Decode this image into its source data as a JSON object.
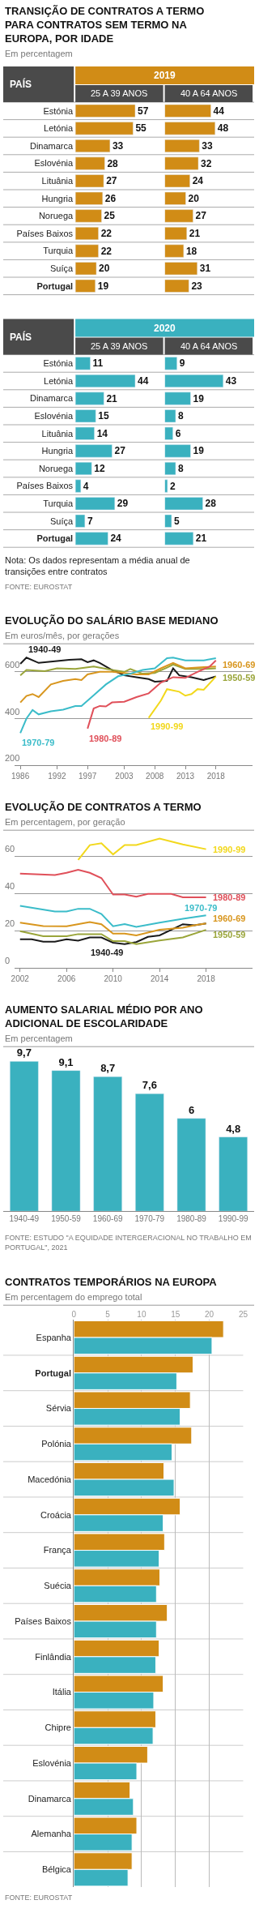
{
  "chart_data": [
    {
      "type": "bar",
      "orientation": "horizontal",
      "title": "TRANSIÇÃO DE CONTRATOS A TERMO PARA CONTRATOS SEM TERMO NA EUROPA, POR IDADE",
      "subtitle": "Em percentagem",
      "ylabel": "PAÍS",
      "legend_title": "2019",
      "xlabel": "25 A 39 ANOS",
      "data_labels": true,
      "color": "#d18c16",
      "categories": [
        "Estónia",
        "Letónia",
        "Dinamarca",
        "Eslovénia",
        "Lituânia",
        "Hungria",
        "Noruega",
        "Países Baixos",
        "Turquia",
        "Suíça",
        "Portugal"
      ],
      "values": [
        57,
        55,
        33,
        28,
        27,
        26,
        25,
        22,
        22,
        20,
        19
      ]
    },
    {
      "type": "bar",
      "orientation": "horizontal",
      "xlabel": "40 A 64 ANOS",
      "data_labels": true,
      "color": "#d18c16",
      "tick_labels": false,
      "categories": [
        "Estónia",
        "Letónia",
        "Dinamarca",
        "Eslovénia",
        "Lituânia",
        "Hungria",
        "Noruega",
        "Países Baixos",
        "Turquia",
        "Suíça",
        "Portugal"
      ],
      "values": [
        44,
        48,
        33,
        32,
        24,
        20,
        27,
        21,
        18,
        31,
        23
      ]
    },
    {
      "type": "bar",
      "orientation": "horizontal",
      "ylabel": "PAÍS",
      "legend_title": "2020",
      "xlabel": "25 A 39 ANOS",
      "data_labels": true,
      "color": "#3ab1bf",
      "categories": [
        "Estónia",
        "Letónia",
        "Dinamarca",
        "Eslovénia",
        "Lituânia",
        "Hungria",
        "Noruega",
        "Países Baixos",
        "Turquia",
        "Suíça",
        "Portugal"
      ],
      "values": [
        11,
        44,
        21,
        15,
        14,
        27,
        12,
        4,
        29,
        7,
        24
      ]
    },
    {
      "type": "bar",
      "orientation": "horizontal",
      "xlabel": "40 A 64 ANOS",
      "data_labels": true,
      "color": "#3ab1bf",
      "tick_labels": false,
      "categories": [
        "Estónia",
        "Letónia",
        "Dinamarca",
        "Eslovénia",
        "Lituânia",
        "Hungria",
        "Noruega",
        "Países Baixos",
        "Turquia",
        "Suíça",
        "Portugal"
      ],
      "values": [
        9,
        43,
        19,
        8,
        6,
        19,
        8,
        2,
        28,
        5,
        21
      ],
      "annotations": [
        "Nota: Os dados representam a média anual de transições entre contratos",
        "FONTE: EUROSTAT"
      ]
    },
    {
      "type": "line",
      "title": "EVOLUÇÃO DO SALÁRIO BASE MEDIANO",
      "subtitle": "Em euros/mês, por gerações",
      "xlim": [
        1985,
        2024
      ],
      "xticks": [
        1986,
        1992,
        1997,
        2003,
        2008,
        2013,
        2018
      ],
      "ylim": [
        200,
        720
      ],
      "yticks": [
        200,
        400,
        600
      ],
      "grid": "y",
      "series": [
        {
          "name": "1940-49",
          "color": "#1a1a1a",
          "x": [
            1986,
            1987,
            1989,
            1992,
            1994,
            1996,
            1997,
            1998,
            1999,
            2001,
            2003,
            2005,
            2007,
            2008,
            2010,
            2011,
            2012,
            2014,
            2016,
            2018
          ],
          "values": [
            634,
            661,
            638,
            646,
            651,
            654,
            641,
            649,
            638,
            608,
            585,
            577,
            569,
            558,
            561,
            615,
            585,
            577,
            565,
            580
          ]
        },
        {
          "name": "1950-59",
          "color": "#9aa53a",
          "x": [
            1986,
            1987,
            1990,
            1992,
            1995,
            1998,
            2001,
            2003,
            2004,
            2006,
            2008,
            2010,
            2011,
            2013,
            2016,
            2018
          ],
          "values": [
            585,
            608,
            603,
            615,
            612,
            623,
            608,
            600,
            612,
            592,
            595,
            618,
            631,
            612,
            612,
            615
          ]
        },
        {
          "name": "1960-69",
          "color": "#d8961e",
          "x": [
            1986,
            1987,
            1988,
            1989,
            1991,
            1993,
            1995,
            1996,
            1997,
            1999,
            2001,
            2003,
            2005,
            2007,
            2009,
            2011,
            2013,
            2015,
            2018
          ],
          "values": [
            469,
            497,
            505,
            492,
            546,
            561,
            569,
            565,
            589,
            600,
            600,
            595,
            589,
            589,
            615,
            638,
            615,
            618,
            623
          ]
        },
        {
          "name": "1970-79",
          "color": "#3bbcc9",
          "x": [
            1986,
            1987,
            1988,
            1989,
            1991,
            1993,
            1995,
            1996,
            1998,
            2000,
            2002,
            2004,
            2006,
            2008,
            2010,
            2011,
            2013,
            2016,
            2018
          ],
          "values": [
            338,
            400,
            437,
            418,
            431,
            438,
            454,
            454,
            500,
            546,
            581,
            592,
            608,
            615,
            658,
            661,
            649,
            649,
            658
          ]
        },
        {
          "name": "1980-89",
          "color": "#e0505a",
          "x": [
            1997,
            1998,
            1999,
            2000,
            2001,
            2003,
            2005,
            2007,
            2009,
            2011,
            2013,
            2015,
            2017,
            2018
          ],
          "values": [
            357,
            443,
            454,
            452,
            469,
            472,
            492,
            508,
            554,
            577,
            574,
            600,
            623,
            649
          ]
        },
        {
          "name": "1990-99",
          "color": "#f2d81c",
          "x": [
            2007,
            2009,
            2010,
            2012,
            2013,
            2014,
            2015,
            2016,
            2018
          ],
          "values": [
            403,
            477,
            526,
            515,
            498,
            505,
            526,
            523,
            580
          ]
        }
      ]
    },
    {
      "type": "line",
      "title": "EVOLUÇÃO DE CONTRATOS A TERMO",
      "subtitle": "Em percentagem, por geração",
      "xlim": [
        2001.5,
        2022
      ],
      "xticks": [
        2002,
        2006,
        2010,
        2014,
        2018
      ],
      "ylim": [
        0,
        74
      ],
      "yticks": [
        0,
        20,
        40,
        60
      ],
      "grid": "y",
      "series": [
        {
          "name": "1940-49",
          "color": "#1a1a1a",
          "x": [
            2002,
            2003,
            2004,
            2005,
            2006,
            2007,
            2008,
            2009,
            2010,
            2011,
            2012,
            2013,
            2014,
            2015,
            2016,
            2017,
            2018
          ],
          "values": [
            15.4,
            15.4,
            14.1,
            14.1,
            15.4,
            14.7,
            16.4,
            16.4,
            13.6,
            12.8,
            13.9,
            16.7,
            17.5,
            20.5,
            23.5,
            22.9,
            23.9
          ]
        },
        {
          "name": "1950-59",
          "color": "#9aa53a",
          "x": [
            2002,
            2004,
            2006,
            2007,
            2009,
            2010,
            2011,
            2012,
            2014,
            2016,
            2018
          ],
          "values": [
            19.8,
            17.1,
            17.1,
            18.2,
            18.2,
            14.4,
            14.4,
            12.8,
            14.8,
            16.4,
            20.5
          ]
        },
        {
          "name": "1960-69",
          "color": "#d8961e",
          "x": [
            2002,
            2004,
            2006,
            2008,
            2009,
            2010,
            2011,
            2012,
            2014,
            2016,
            2017,
            2018
          ],
          "values": [
            24.4,
            22.5,
            22.4,
            24.7,
            23.5,
            18.5,
            18.5,
            17.5,
            20.5,
            21.6,
            22.9,
            23.9
          ]
        },
        {
          "name": "1970-79",
          "color": "#3bbcc9",
          "x": [
            2002,
            2005,
            2006,
            2007,
            2008,
            2009,
            2010,
            2011,
            2012,
            2014,
            2016,
            2018
          ],
          "values": [
            33.4,
            30.3,
            30.3,
            31.8,
            31.8,
            29,
            22.4,
            23.6,
            22.1,
            24.4,
            26.4,
            28.3
          ]
        },
        {
          "name": "1980-89",
          "color": "#e0505a",
          "x": [
            2002,
            2005,
            2006,
            2007,
            2008,
            2009,
            2010,
            2011,
            2012,
            2013,
            2015,
            2016,
            2018
          ],
          "values": [
            50.7,
            49.9,
            51.1,
            52.7,
            51.1,
            48.3,
            39.5,
            39.5,
            38.3,
            39.8,
            39.8,
            38,
            38
          ]
        },
        {
          "name": "1990-99",
          "color": "#f2d81c",
          "x": [
            2007,
            2008,
            2009,
            2010,
            2011,
            2012,
            2014,
            2016,
            2018
          ],
          "values": [
            58,
            66,
            67,
            61,
            66,
            66,
            69.5,
            66.4,
            63.8
          ]
        }
      ]
    },
    {
      "type": "bar",
      "title": "AUMENTO SALARIAL MÉDIO POR ANO ADICIONAL DE ESCOLARIDADE",
      "subtitle": "Em percentagem",
      "categories": [
        "1940-49",
        "1950-59",
        "1960-69",
        "1970-79",
        "1980-89",
        "1990-99"
      ],
      "color": "#3ab1bf",
      "values": [
        9.7,
        9.1,
        8.7,
        7.6,
        6,
        4.8
      ],
      "value_labels": [
        "9,7",
        "9,1",
        "8,7",
        "7,6",
        "6",
        "4,8"
      ],
      "annotations": [
        "FONTE: ESTUDO \"A EQUIDADE INTERGERACIONAL NO TRABALHO EM PORTUGAL\", 2021"
      ]
    },
    {
      "type": "bar",
      "orientation": "horizontal",
      "title": "CONTRATOS TEMPORÁRIOS NA EUROPA",
      "subtitle": "Em percentagem do emprego total",
      "xlim": [
        0,
        25
      ],
      "xticks": [
        0,
        5,
        10,
        15,
        20,
        25
      ],
      "grid": "x",
      "categories": [
        "Espanha",
        "Portugal",
        "Sérvia",
        "Polónia",
        "Macedónia",
        "Croácia",
        "França",
        "Suécia",
        "Países Baixos",
        "Finlândia",
        "Itália",
        "Chipre",
        "Eslovénia",
        "Dinamarca",
        "Alemanha",
        "Bélgica"
      ],
      "series": [
        {
          "color": "#d18c16",
          "values": [
            22.1,
            17.6,
            17.2,
            17.4,
            13.3,
            15.7,
            13.4,
            12.7,
            13.8,
            12.6,
            13.2,
            12.1,
            10.9,
            8.3,
            9.3,
            8.6
          ]
        },
        {
          "color": "#3ab1bf",
          "values": [
            20.4,
            15.2,
            15.7,
            14.5,
            14.8,
            13.2,
            12.6,
            12.2,
            12.2,
            12.1,
            11.8,
            11.7,
            9.3,
            8.8,
            8.6,
            8.0
          ]
        }
      ],
      "annotations": [
        "FONTE: EUROSTAT"
      ]
    }
  ]
}
